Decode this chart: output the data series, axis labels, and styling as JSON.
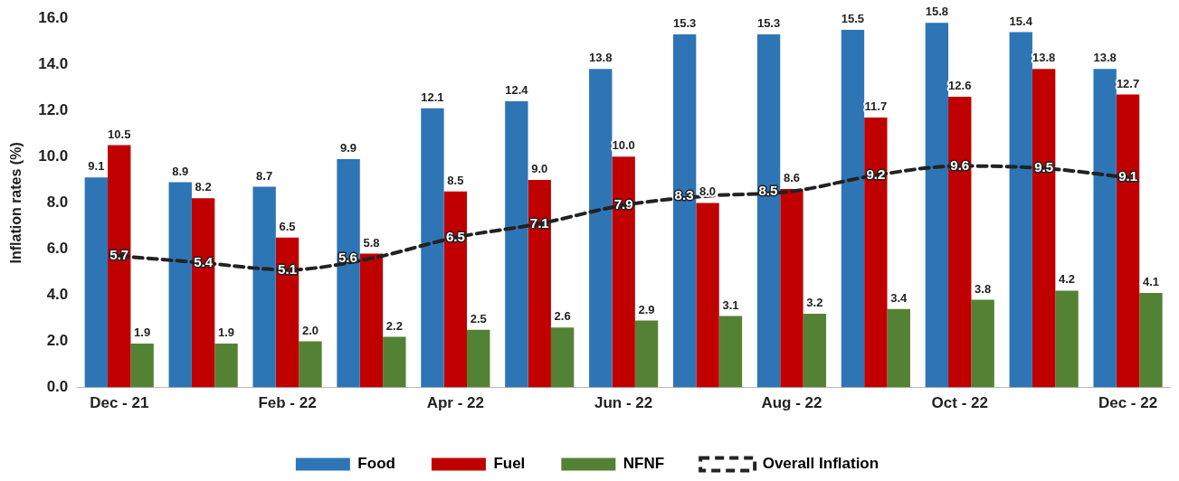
{
  "chart_data": {
    "type": "bar",
    "ylabel": "Inflation rates (%)",
    "categories": [
      "Dec - 21",
      null,
      "Feb - 22",
      null,
      "Apr - 22",
      null,
      "Jun - 22",
      null,
      "Aug - 22",
      null,
      "Oct - 22",
      null,
      "Dec - 22"
    ],
    "series": [
      {
        "name": "Food",
        "color": "#2e75b6",
        "values": [
          9.1,
          8.9,
          8.7,
          9.9,
          12.1,
          12.4,
          13.8,
          15.3,
          15.3,
          15.5,
          15.8,
          15.4,
          13.8
        ],
        "value_labels": [
          "9.1",
          "8.9",
          "8.7",
          "9.9",
          "12.1",
          "12.4",
          "13.8",
          "15.3",
          "15.3",
          "15.5",
          "15.8",
          "15.4",
          "13.8"
        ]
      },
      {
        "name": "Fuel",
        "color": "#c00000",
        "values": [
          10.5,
          8.2,
          6.5,
          5.8,
          8.5,
          9.0,
          10.0,
          8.0,
          8.6,
          11.7,
          12.6,
          13.8,
          12.7
        ],
        "value_labels": [
          "10.5",
          "8.2",
          "6.5",
          "5.8",
          "8.5",
          "9.0",
          "10.0",
          "8.0",
          "8.6",
          "11.7",
          "12.6",
          "13.8",
          "12.7"
        ]
      },
      {
        "name": "NFNF",
        "color": "#548235",
        "values": [
          1.9,
          1.9,
          2.0,
          2.2,
          2.5,
          2.6,
          2.9,
          3.1,
          3.2,
          3.4,
          3.8,
          4.2,
          4.1
        ],
        "value_labels": [
          "1.9",
          "1.9",
          "2.0",
          "2.2",
          "2.5",
          "2.6",
          "2.9",
          "3.1",
          "3.2",
          "3.4",
          "3.8",
          "4.2",
          "4.1"
        ]
      },
      {
        "name": "Overall Inflation",
        "type": "line",
        "color": "#222222",
        "line_style": "dashed",
        "marker": "none",
        "values": [
          5.7,
          5.4,
          5.1,
          5.6,
          6.5,
          7.1,
          7.9,
          8.3,
          8.5,
          9.2,
          9.6,
          9.5,
          9.1
        ],
        "value_labels": [
          "5.7",
          "5.4",
          "5.1",
          "5.6",
          "6.5",
          "7.1",
          "7.9",
          "8.3",
          "8.5",
          "9.2",
          "9.6",
          "9.5",
          "9.1"
        ]
      }
    ],
    "ylim": [
      0,
      16
    ],
    "yticks": [
      {
        "value": 0,
        "label": "0.0"
      },
      {
        "value": 2,
        "label": "2.0"
      },
      {
        "value": 4,
        "label": "4.0"
      },
      {
        "value": 6,
        "label": "6.0"
      },
      {
        "value": 8,
        "label": "8.0"
      },
      {
        "value": 10,
        "label": "10.0"
      },
      {
        "value": 12,
        "label": "12.0"
      },
      {
        "value": 14,
        "label": "14.0"
      },
      {
        "value": 16,
        "label": "16.0"
      }
    ],
    "grid": false,
    "legend": "bottom"
  }
}
